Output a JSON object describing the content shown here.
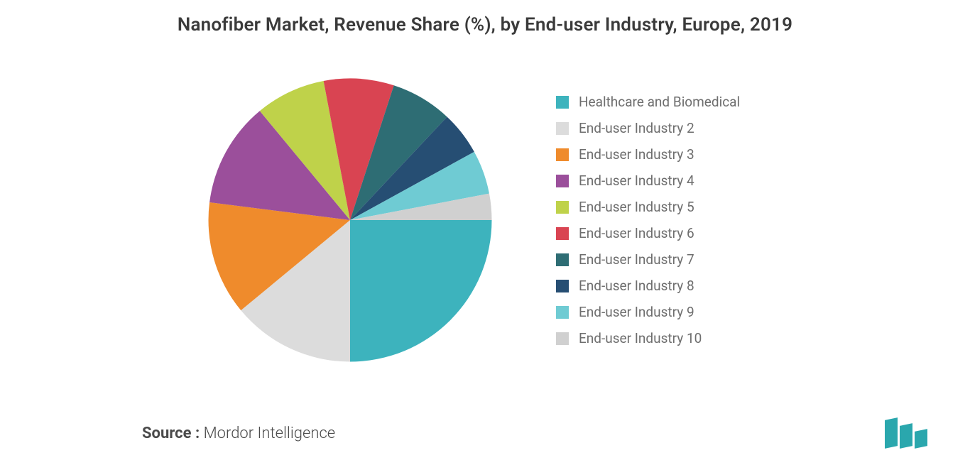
{
  "title": "Nanofiber Market, Revenue Share (%), by End-user Industry, Europe, 2019",
  "source_label": "Source :",
  "source_value": "Mordor Intelligence",
  "chart": {
    "type": "pie",
    "start_angle_deg": 0,
    "background_color": "#ffffff",
    "title_color": "#3a3a3a",
    "title_fontsize": 26,
    "legend_fontsize": 19,
    "legend_color": "#6e6e6e",
    "slices": [
      {
        "label": "Healthcare and Biomedical",
        "value": 25,
        "color": "#3db3bd"
      },
      {
        "label": "End-user Industry 2",
        "value": 14,
        "color": "#dcdcdc"
      },
      {
        "label": "End-user Industry 3",
        "value": 13,
        "color": "#ef8b2c"
      },
      {
        "label": "End-user Industry 4",
        "value": 12,
        "color": "#9b4f9b"
      },
      {
        "label": "End-user Industry 5",
        "value": 8,
        "color": "#bfd24a"
      },
      {
        "label": "End-user Industry 6",
        "value": 8,
        "color": "#d94452"
      },
      {
        "label": "End-user Industry 7",
        "value": 7,
        "color": "#2e6d74"
      },
      {
        "label": "End-user Industry 8",
        "value": 5,
        "color": "#264e73"
      },
      {
        "label": "End-user Industry 9",
        "value": 5,
        "color": "#6fcbd3"
      },
      {
        "label": "End-user Industry 10",
        "value": 3,
        "color": "#d0d0d0"
      }
    ]
  },
  "logo": {
    "color": "#2aa7ad"
  }
}
